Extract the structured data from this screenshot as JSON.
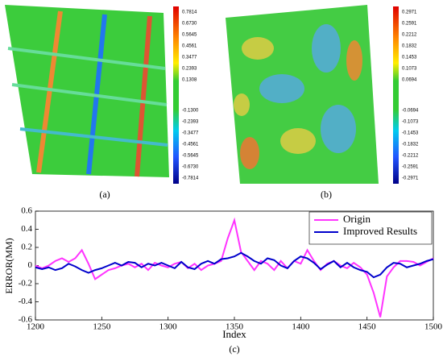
{
  "panels": [
    {
      "label": "(a)",
      "colorbar_ticks": [
        "0.7814",
        "0.6730",
        "0.5645",
        "0.4561",
        "0.3477",
        "0.2393",
        "0.1308",
        "-0.1300",
        "-0.2393",
        "-0.3477",
        "-0.4561",
        "-0.5645",
        "-0.6730",
        "-0.7814"
      ]
    },
    {
      "label": "(b)",
      "colorbar_ticks": [
        "0.2971",
        "0.2591",
        "0.2212",
        "0.1832",
        "0.1453",
        "0.1073",
        "0.0694",
        "-0.0694",
        "-0.1073",
        "-0.1453",
        "-0.1832",
        "-0.2212",
        "-0.2591",
        "-0.2971"
      ]
    }
  ],
  "chart_data": {
    "type": "line",
    "caption": "(c)",
    "xlabel": "Index",
    "ylabel": "ERROR(MM)",
    "x": [
      1200,
      1205,
      1210,
      1215,
      1220,
      1225,
      1230,
      1235,
      1240,
      1245,
      1250,
      1255,
      1260,
      1265,
      1270,
      1275,
      1280,
      1285,
      1290,
      1295,
      1300,
      1305,
      1310,
      1315,
      1320,
      1325,
      1330,
      1335,
      1340,
      1345,
      1350,
      1355,
      1360,
      1365,
      1370,
      1375,
      1380,
      1385,
      1390,
      1395,
      1400,
      1405,
      1410,
      1415,
      1420,
      1425,
      1430,
      1435,
      1440,
      1445,
      1450,
      1455,
      1460,
      1465,
      1470,
      1475,
      1480,
      1485,
      1490,
      1495,
      1500
    ],
    "series": [
      {
        "name": "Origin",
        "color": "#ff33ff",
        "values": [
          0,
          -0.03,
          0,
          0.05,
          0.08,
          0.04,
          0.08,
          0.17,
          0.02,
          -0.15,
          -0.1,
          -0.05,
          -0.03,
          0,
          0.02,
          -0.02,
          0.02,
          -0.05,
          0.03,
          0,
          -0.02,
          0.02,
          0.04,
          -0.03,
          0.02,
          -0.05,
          0,
          0.02,
          0.05,
          0.3,
          0.5,
          0.15,
          0.05,
          -0.05,
          0.05,
          0.02,
          -0.05,
          0.05,
          -0.03,
          0.05,
          0.02,
          0.17,
          0.05,
          -0.05,
          0.02,
          0.05,
          0,
          -0.03,
          0.03,
          -0.02,
          -0.1,
          -0.3,
          -0.57,
          -0.12,
          -0.02,
          0.05,
          0.05,
          0.04,
          0,
          0.04,
          0.08
        ]
      },
      {
        "name": "Improved Results",
        "color": "#0000cc",
        "values": [
          -0.02,
          -0.04,
          -0.02,
          -0.05,
          -0.03,
          0.02,
          -0.01,
          -0.05,
          -0.08,
          -0.05,
          -0.03,
          0,
          0.03,
          0,
          0.04,
          0.03,
          -0.02,
          0.02,
          0,
          0.03,
          0,
          -0.03,
          0.04,
          -0.02,
          -0.04,
          0.02,
          0.05,
          0.02,
          0.07,
          0.08,
          0.1,
          0.14,
          0.1,
          0.05,
          0.02,
          0.08,
          0.06,
          0,
          -0.03,
          0.05,
          0.1,
          0.08,
          0.03,
          -0.04,
          0.01,
          0.05,
          -0.02,
          0.03,
          -0.02,
          -0.05,
          -0.07,
          -0.13,
          -0.1,
          -0.02,
          0.03,
          0.02,
          -0.02,
          0,
          0.02,
          0.05,
          0.07
        ]
      }
    ],
    "xlim": [
      1200,
      1500
    ],
    "xticks": [
      1200,
      1250,
      1300,
      1350,
      1400,
      1450,
      1500
    ],
    "ylim": [
      -0.6,
      0.6
    ],
    "yticks": [
      -0.6,
      -0.4,
      -0.2,
      0,
      0.2,
      0.4,
      0.6
    ],
    "legend": "upper right"
  }
}
